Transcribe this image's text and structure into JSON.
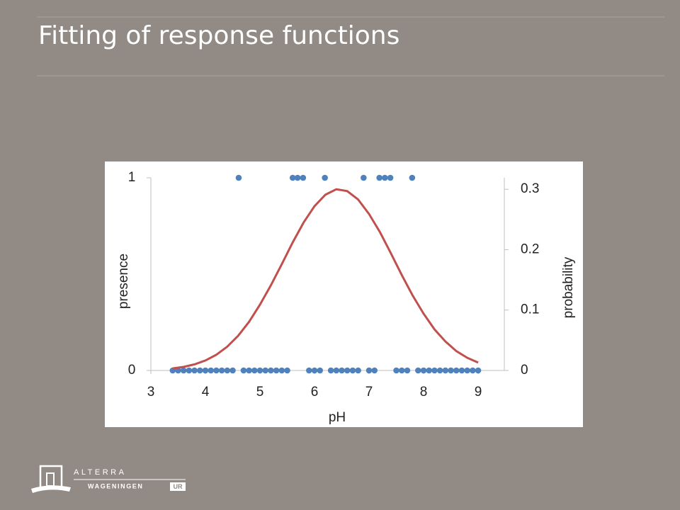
{
  "slide": {
    "title": "Fitting of response functions"
  },
  "logo": {
    "top": "ALTERRA",
    "bottom": "WAGENINGEN",
    "badge": "UR"
  },
  "chart_data": {
    "type": "combo",
    "xlabel": "pH",
    "ylabel": "presence",
    "y2label": "probability",
    "xlim": [
      3,
      9.48
    ],
    "xticks": [
      3,
      4,
      5,
      6,
      7,
      8,
      9
    ],
    "ylim": [
      0,
      1
    ],
    "yticks": [
      0,
      1
    ],
    "y2lim": [
      0,
      0.319
    ],
    "y2ticks": [
      0,
      0.1,
      0.2,
      0.3
    ],
    "grid": false,
    "series": [
      {
        "type": "scatter",
        "color": "#4f81bd",
        "x": [
          4.61,
          5.6,
          5.69,
          5.79,
          6.19,
          6.9,
          7.19,
          7.29,
          7.39,
          7.79,
          3.4,
          3.5,
          3.6,
          3.7,
          3.8,
          3.9,
          4.0,
          4.1,
          4.2,
          4.3,
          4.4,
          4.5,
          4.7,
          4.8,
          4.9,
          5.0,
          5.1,
          5.2,
          5.3,
          5.4,
          5.5,
          5.9,
          6.0,
          6.1,
          6.3,
          6.4,
          6.5,
          6.6,
          6.7,
          6.8,
          7.0,
          7.1,
          7.5,
          7.6,
          7.7,
          7.9,
          8.0,
          8.1,
          8.2,
          8.3,
          8.4,
          8.5,
          8.6,
          8.7,
          8.8,
          8.9,
          9.0
        ],
        "values": [
          1,
          1,
          1,
          1,
          1,
          1,
          1,
          1,
          1,
          1,
          0,
          0,
          0,
          0,
          0,
          0,
          0,
          0,
          0,
          0,
          0,
          0,
          0,
          0,
          0,
          0,
          0,
          0,
          0,
          0,
          0,
          0,
          0,
          0,
          0,
          0,
          0,
          0,
          0,
          0,
          0,
          0,
          0,
          0,
          0,
          0,
          0,
          0,
          0,
          0,
          0,
          0,
          0,
          0,
          0,
          0,
          0
        ]
      },
      {
        "type": "line",
        "color": "#c0504d",
        "axis": "y2",
        "x": [
          3.4,
          3.6,
          3.8,
          4.0,
          4.2,
          4.4,
          4.6,
          4.8,
          5.0,
          5.2,
          5.4,
          5.6,
          5.8,
          6.0,
          6.2,
          6.4,
          6.6,
          6.8,
          7.0,
          7.2,
          7.4,
          7.6,
          7.8,
          8.0,
          8.2,
          8.4,
          8.6,
          8.8,
          9.0
        ],
        "values": [
          0.0034,
          0.0059,
          0.0101,
          0.0165,
          0.026,
          0.0394,
          0.0574,
          0.0805,
          0.109,
          0.141,
          0.176,
          0.212,
          0.245,
          0.272,
          0.291,
          0.3,
          0.297,
          0.283,
          0.259,
          0.229,
          0.194,
          0.158,
          0.124,
          0.094,
          0.068,
          0.048,
          0.032,
          0.021,
          0.013
        ]
      }
    ]
  }
}
